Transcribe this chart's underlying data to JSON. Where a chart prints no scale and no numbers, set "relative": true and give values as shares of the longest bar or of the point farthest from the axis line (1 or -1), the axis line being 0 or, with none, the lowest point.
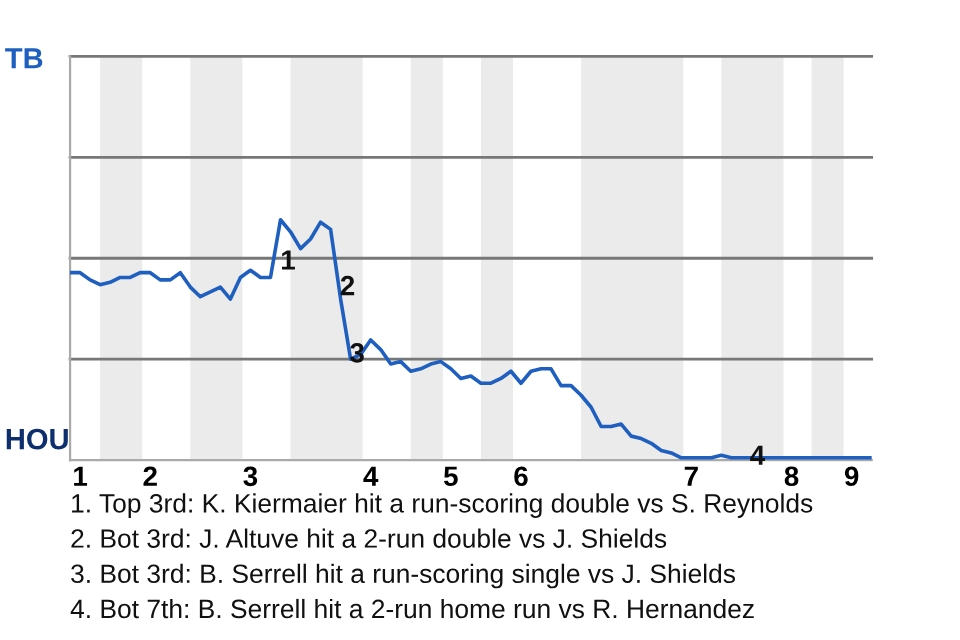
{
  "chart_data": {
    "type": "line",
    "relative": true,
    "marker": "none",
    "line_style": "solid",
    "ref_lines": [
      {
        "axis": "y",
        "value": 0.42,
        "color": "#777777"
      },
      {
        "axis": "y",
        "value": 0.84,
        "color": "#777777"
      },
      {
        "axis": "y",
        "value": 1.26,
        "color": "#777777"
      },
      {
        "axis": "y",
        "value": 1.68,
        "color": "#777777"
      }
    ],
    "categories": [
      null,
      "1",
      null,
      null,
      null,
      null,
      null,
      null,
      "2",
      null,
      null,
      null,
      null,
      null,
      null,
      null,
      null,
      null,
      "3",
      null,
      null,
      null,
      null,
      null,
      null,
      null,
      null,
      null,
      null,
      null,
      "4",
      null,
      null,
      null,
      null,
      null,
      null,
      null,
      "5",
      null,
      null,
      null,
      null,
      null,
      null,
      "6",
      null,
      null,
      null,
      null,
      null,
      null,
      null,
      null,
      null,
      null,
      null,
      null,
      null,
      null,
      null,
      null,
      "7",
      null,
      null,
      null,
      null,
      null,
      null,
      null,
      null,
      null,
      "8",
      null,
      null,
      null,
      null,
      null,
      "9",
      null,
      null
    ],
    "series": [
      {
        "color": "#1f5fbf",
        "values": [
          0.78,
          0.78,
          0.75,
          0.73,
          0.74,
          0.76,
          0.76,
          0.78,
          0.78,
          0.75,
          0.75,
          0.78,
          0.72,
          0.68,
          0.7,
          0.72,
          0.67,
          0.76,
          0.79,
          0.76,
          0.76,
          1.0,
          0.95,
          0.88,
          0.92,
          0.99,
          0.96,
          0.67,
          0.42,
          0.44,
          0.5,
          0.46,
          0.4,
          0.41,
          0.37,
          0.38,
          0.4,
          0.41,
          0.38,
          0.34,
          0.35,
          0.32,
          0.32,
          0.34,
          0.37,
          0.32,
          0.37,
          0.38,
          0.38,
          0.31,
          0.31,
          0.27,
          0.22,
          0.14,
          0.14,
          0.15,
          0.1,
          0.09,
          0.07,
          0.04,
          0.03,
          0.01,
          0.01,
          0.01,
          0.01,
          0.02,
          0.01,
          0.01,
          0.01,
          0.01,
          0.01,
          0.01,
          0.01,
          0.01,
          0.01,
          0.01,
          0.01,
          0.01,
          0.01,
          0.01,
          0.01
        ]
      }
    ],
    "annotations": [
      "TB",
      "HOU",
      "1",
      "2",
      "3",
      "4",
      "1. Top 3rd: K. Kiermaier hit a run-scoring double vs S. Reynolds",
      "2. Bot 3rd: J. Altuve hit a 2-run double vs J. Shields",
      "3. Bot 3rd: B. Serrell hit a run-scoring single vs J. Shields",
      "4. Bot 7th: B. Serrell hit a 2-run home run vs R. Hernandez"
    ]
  }
}
